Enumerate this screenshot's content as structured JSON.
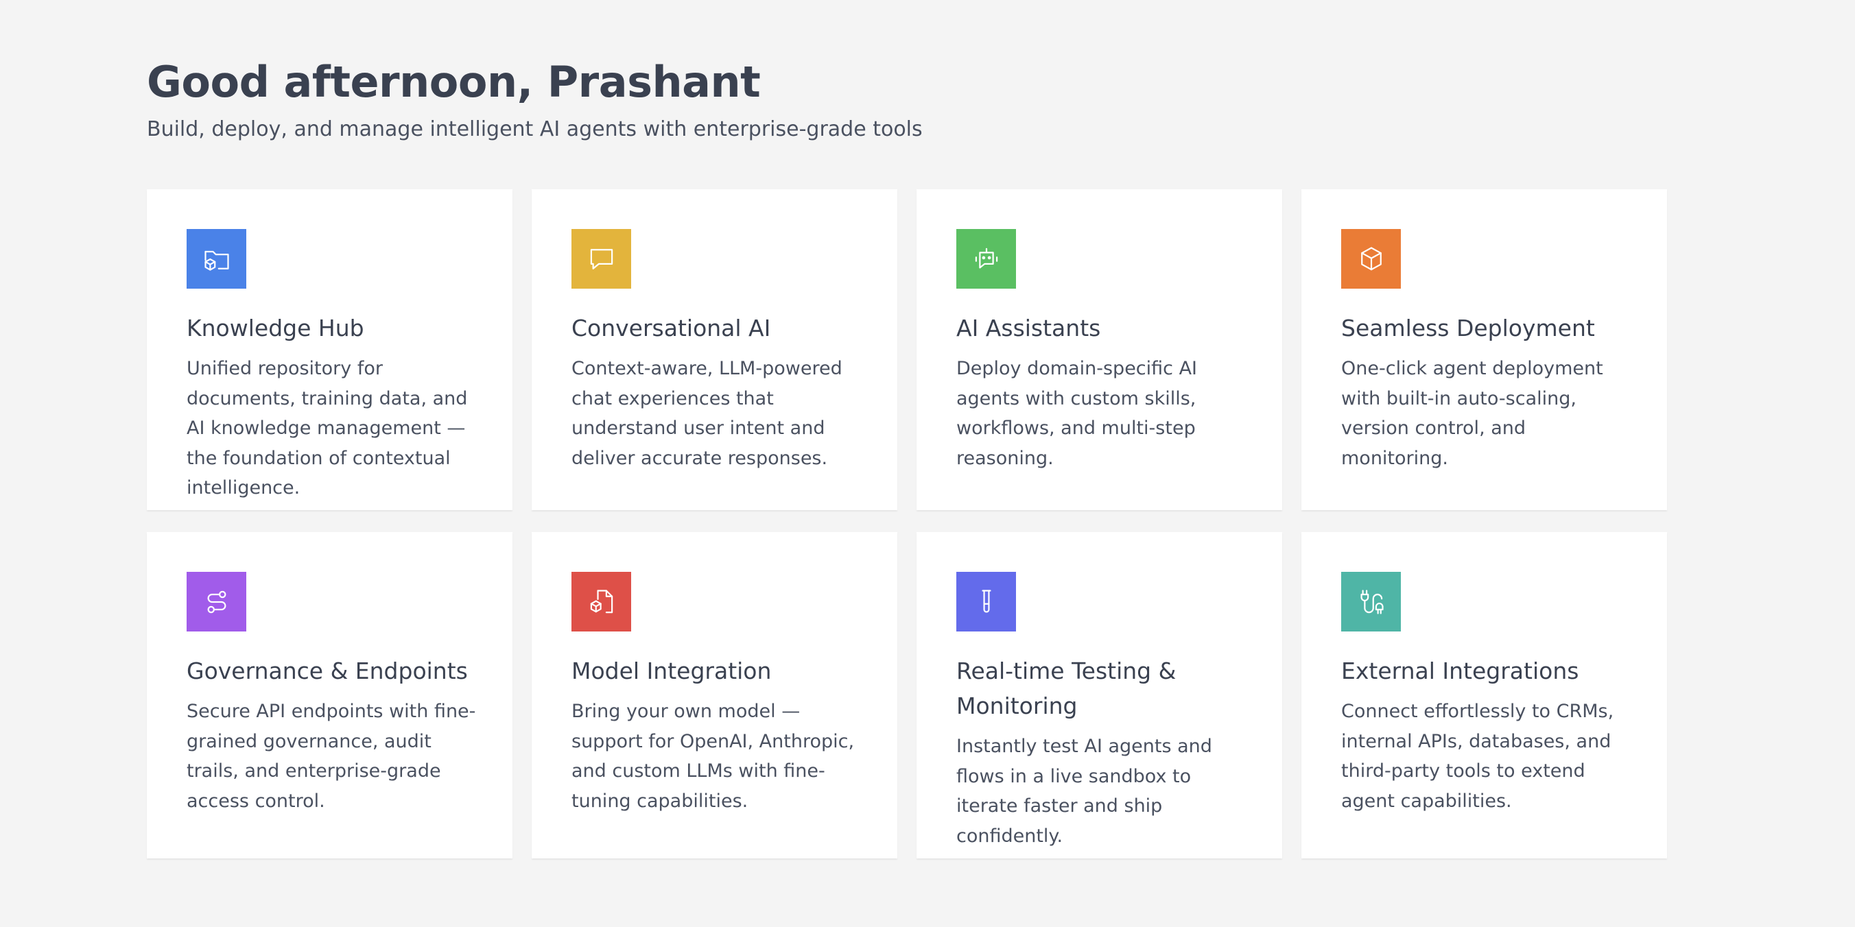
{
  "header": {
    "greeting": "Good afternoon, Prashant",
    "subtitle": "Build, deploy, and manage intelligent AI agents with enterprise-grade tools"
  },
  "cards": [
    {
      "title": "Knowledge Hub",
      "description": "Unified repository for documents, training data, and AI knowledge management — the foundation of contextual intelligence.",
      "icon": "folder-cube-icon",
      "color": "#4a82e8"
    },
    {
      "title": "Conversational AI",
      "description": "Context-aware, LLM-powered chat experiences that understand user intent and deliver accurate responses.",
      "icon": "chat-bubble-icon",
      "color": "#e3b43c"
    },
    {
      "title": "AI Assistants",
      "description": "Deploy domain-specific AI agents with custom skills, workflows, and multi-step reasoning.",
      "icon": "bot-icon",
      "color": "#5abf62"
    },
    {
      "title": "Seamless Deployment",
      "description": "One-click agent deployment with built-in auto-scaling, version control, and monitoring.",
      "icon": "cube-icon",
      "color": "#ea7c36"
    },
    {
      "title": "Governance & Endpoints",
      "description": "Secure API endpoints with fine-grained governance, audit trails, and enterprise-grade access control.",
      "icon": "route-icon",
      "color": "#a15cea"
    },
    {
      "title": "Model Integration",
      "description": "Bring your own model — support for OpenAI, Anthropic, and custom LLMs with fine-tuning capabilities.",
      "icon": "file-cube-icon",
      "color": "#de5048"
    },
    {
      "title": "Real-time Testing & Monitoring",
      "description": "Instantly test AI agents and flows in a live sandbox to iterate faster and ship confidently.",
      "icon": "test-tube-icon",
      "color": "#636beb"
    },
    {
      "title": "External Integrations",
      "description": "Connect effortlessly to CRMs, internal APIs, databases, and third-party tools to extend agent capabilities.",
      "icon": "cable-icon",
      "color": "#4fb5a6"
    }
  ]
}
